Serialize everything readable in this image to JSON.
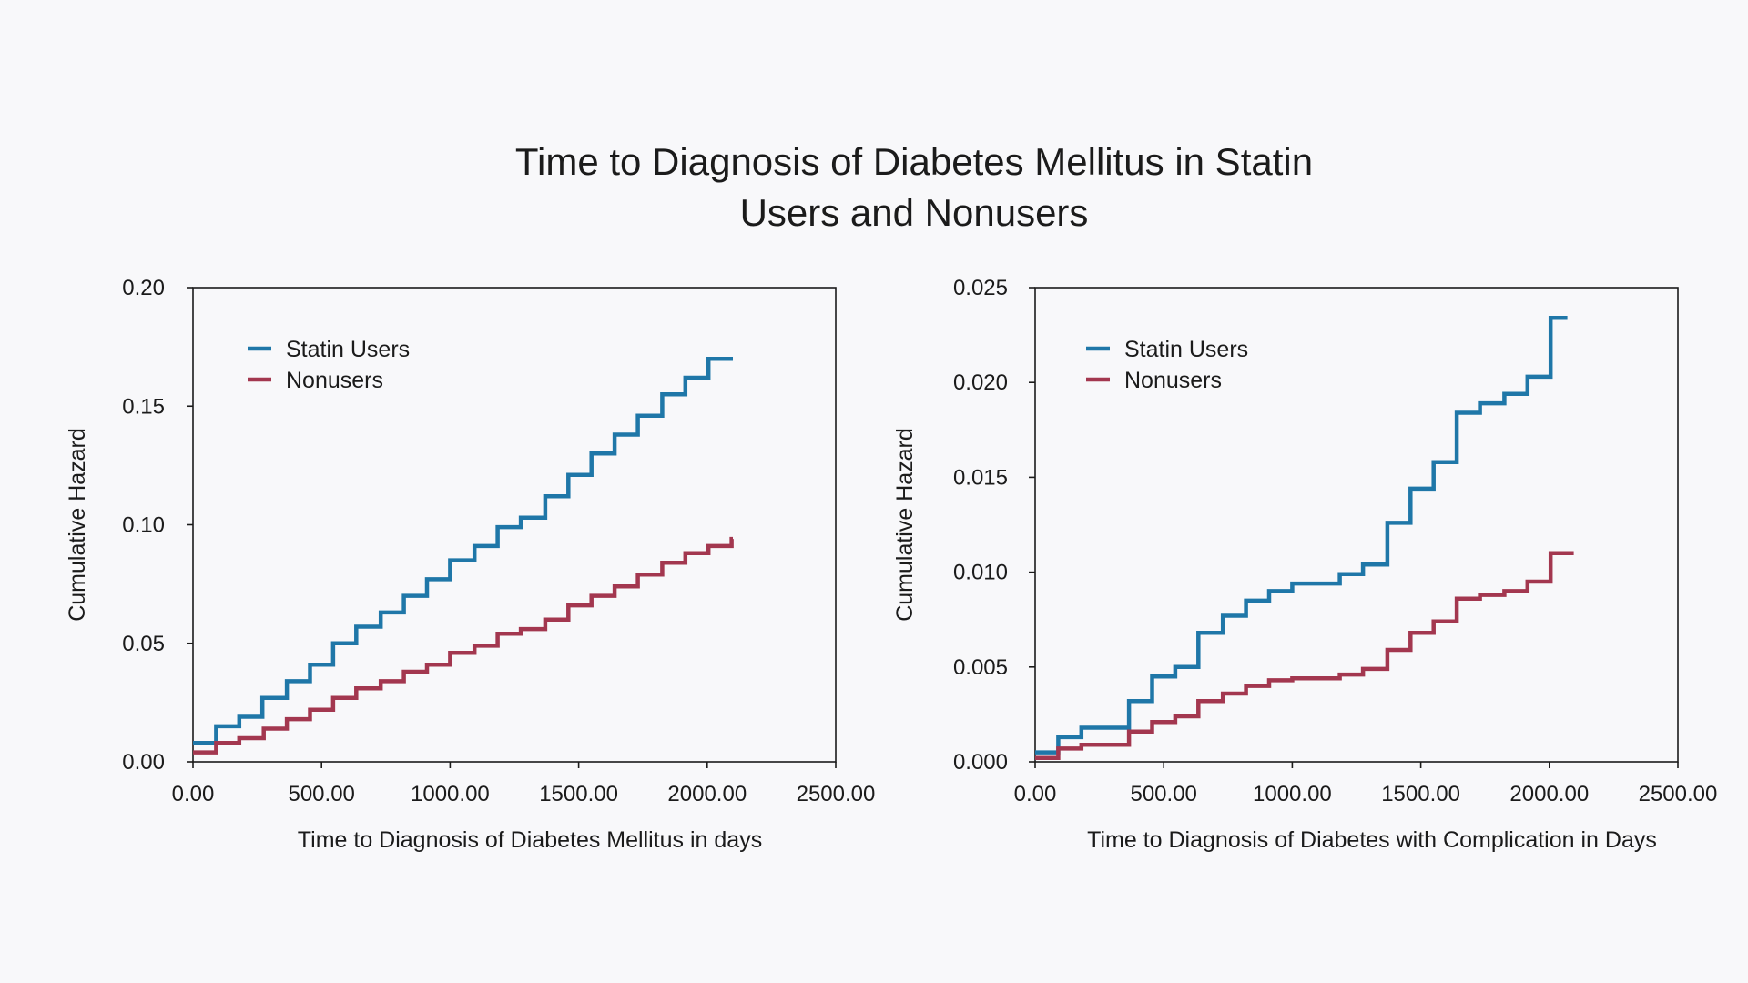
{
  "title_line1": "Time to Diagnosis of Diabetes Mellitus in Statin",
  "title_line2": "Users and Nonusers",
  "colors": {
    "statin": "#1f77a8",
    "nonuser": "#a3374f",
    "axis": "#1b1b1b",
    "background": "#f8f8fa"
  },
  "chart_data": [
    {
      "type": "line",
      "step": true,
      "xlabel": "Time to Diagnosis of Diabetes Mellitus in days",
      "ylabel": "Cumulative Hazard",
      "xlim": [
        0,
        2500
      ],
      "ylim": [
        0,
        0.2
      ],
      "xticks": [
        0,
        500,
        1000,
        1500,
        2000,
        2500
      ],
      "xtick_labels": [
        "0.00",
        "500.00",
        "1000.00",
        "1500.00",
        "2000.00",
        "2500.00"
      ],
      "yticks": [
        0,
        0.05,
        0.1,
        0.15,
        0.2
      ],
      "ytick_labels": [
        "0.00",
        "0.05",
        "0.10",
        "0.15",
        "0.20"
      ],
      "grid": false,
      "legend_position": "top-left",
      "series": [
        {
          "name": "Statin Users",
          "color": "#1f77a8",
          "x": [
            0,
            90,
            180,
            270,
            365,
            455,
            545,
            635,
            730,
            820,
            910,
            1000,
            1095,
            1185,
            1275,
            1370,
            1460,
            1550,
            1640,
            1730,
            1825,
            1915,
            2005,
            2100
          ],
          "y": [
            0.008,
            0.015,
            0.019,
            0.027,
            0.034,
            0.041,
            0.05,
            0.057,
            0.063,
            0.07,
            0.077,
            0.085,
            0.091,
            0.099,
            0.103,
            0.112,
            0.121,
            0.13,
            0.138,
            0.146,
            0.155,
            0.162,
            0.17,
            0.17
          ]
        },
        {
          "name": "Nonusers",
          "color": "#a3374f",
          "x": [
            0,
            90,
            180,
            275,
            365,
            455,
            545,
            635,
            730,
            820,
            910,
            1000,
            1095,
            1185,
            1275,
            1370,
            1460,
            1550,
            1640,
            1730,
            1825,
            1915,
            2005,
            2095,
            2100
          ],
          "y": [
            0.004,
            0.008,
            0.01,
            0.014,
            0.018,
            0.022,
            0.027,
            0.031,
            0.034,
            0.038,
            0.041,
            0.046,
            0.049,
            0.054,
            0.056,
            0.06,
            0.066,
            0.07,
            0.074,
            0.079,
            0.084,
            0.088,
            0.091,
            0.094,
            0.094
          ]
        }
      ]
    },
    {
      "type": "line",
      "step": true,
      "xlabel": "Time to Diagnosis of Diabetes with Complication in Days",
      "ylabel": "Cumulative Hazard",
      "xlim": [
        0,
        2500
      ],
      "ylim": [
        0,
        0.025
      ],
      "xticks": [
        0,
        500,
        1000,
        1500,
        2000,
        2500
      ],
      "xtick_labels": [
        "0.00",
        "500.00",
        "1000.00",
        "1500.00",
        "2000.00",
        "2500.00"
      ],
      "yticks": [
        0,
        0.005,
        0.01,
        0.015,
        0.02,
        0.025
      ],
      "ytick_labels": [
        "0.000",
        "0.005",
        "0.010",
        "0.015",
        "0.020",
        "0.025"
      ],
      "grid": false,
      "legend_position": "top-left",
      "series": [
        {
          "name": "Statin Users",
          "color": "#1f77a8",
          "x": [
            0,
            90,
            180,
            365,
            455,
            545,
            635,
            730,
            820,
            910,
            1000,
            1185,
            1275,
            1370,
            1460,
            1550,
            1640,
            1730,
            1825,
            1915,
            2005,
            2070
          ],
          "y": [
            0.0005,
            0.0013,
            0.0018,
            0.0032,
            0.0045,
            0.005,
            0.0068,
            0.0077,
            0.0085,
            0.009,
            0.0094,
            0.0099,
            0.0104,
            0.0126,
            0.0144,
            0.0158,
            0.0184,
            0.0189,
            0.0194,
            0.0203,
            0.0234,
            0.0234
          ]
        },
        {
          "name": "Nonusers",
          "color": "#a3374f",
          "x": [
            0,
            90,
            180,
            365,
            455,
            545,
            635,
            730,
            820,
            910,
            1000,
            1185,
            1275,
            1370,
            1460,
            1550,
            1640,
            1730,
            1825,
            1915,
            2005,
            2095
          ],
          "y": [
            0.0002,
            0.0007,
            0.0009,
            0.0016,
            0.0021,
            0.0024,
            0.0032,
            0.0036,
            0.004,
            0.0043,
            0.0044,
            0.0046,
            0.0049,
            0.0059,
            0.0068,
            0.0074,
            0.0086,
            0.0088,
            0.009,
            0.0095,
            0.011,
            0.011
          ]
        }
      ]
    }
  ]
}
